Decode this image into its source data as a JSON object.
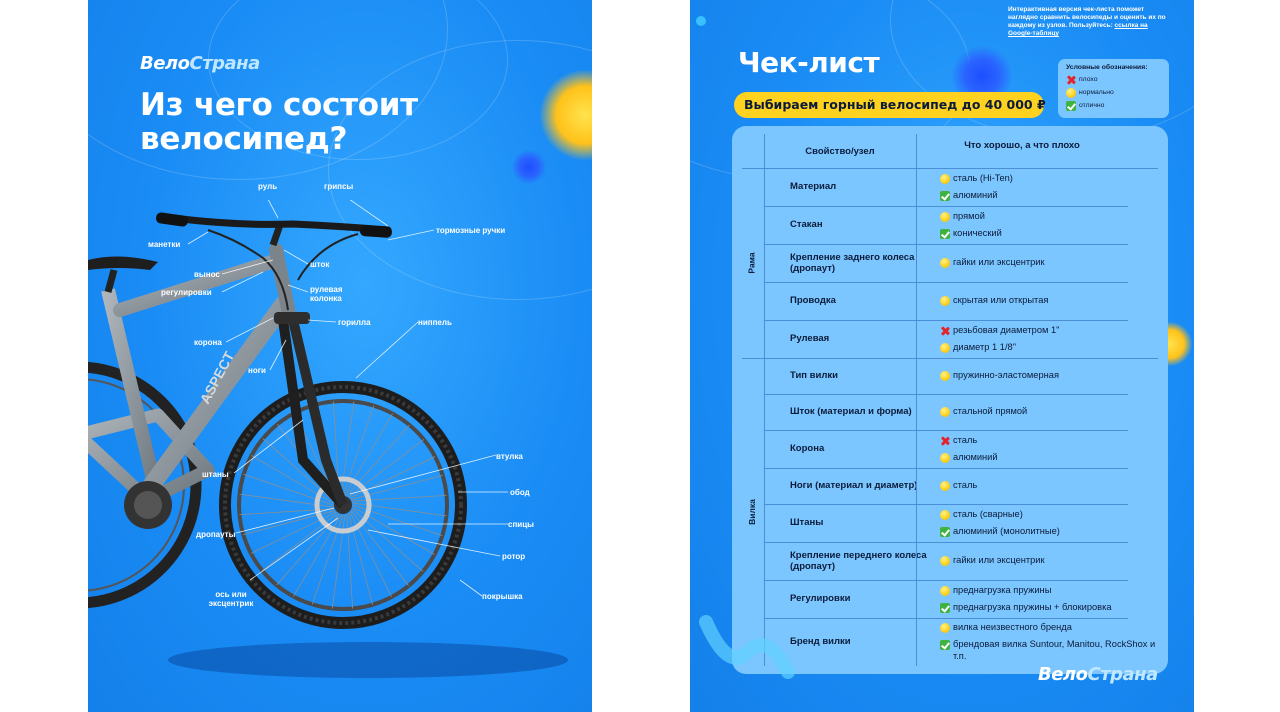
{
  "left_page": {
    "logo": {
      "part1": "Вело",
      "part2": "Страна"
    },
    "title": "Из чего состоит велосипед?",
    "labels": {
      "rul": "руль",
      "gripsy": "грипсы",
      "tormoznye_ruchki": "тормозные ручки",
      "manetki": "манетки",
      "shtok": "шток",
      "vynos": "вынос",
      "regulirovki": "регулировки",
      "rulevaya_kolonka": "рулевая колонка",
      "gorilla": "горилла",
      "nippel": "ниппель",
      "korona": "корона",
      "nogi": "ноги",
      "shtany": "штаны",
      "vtulka": "втулка",
      "obod": "обод",
      "spitsy": "спицы",
      "dropauty": "дропауты",
      "rotor": "ротор",
      "os_ili_ekstsentrik": "ось или эксцентрик",
      "pokryshka": "покрышка"
    },
    "frame_brand": "ASPECT"
  },
  "right_page": {
    "info_text": "Интерактивная версия чек-листа поможет наглядно сравнить велосипеды и оценить их по каждому из узлов. Пользуйтесь:",
    "info_link": "ссылка на Google-таблицу",
    "title": "Чек-лист",
    "subtitle": "Выбираем горный велосипед до 40 000 ₽",
    "legend": {
      "title": "Условные обозначения:",
      "items": [
        {
          "mark": "red",
          "label": "плохо"
        },
        {
          "mark": "yellow",
          "label": "нормально"
        },
        {
          "mark": "green",
          "label": "отлично"
        }
      ]
    },
    "table": {
      "headers": {
        "property": "Свойство/узел",
        "quality": "Что хорошо, а что плохо"
      },
      "groups": [
        {
          "name": "Рама",
          "rows": [
            {
              "property": "Материал",
              "values": [
                {
                  "mark": "yellow",
                  "text": "сталь (Hi-Ten)"
                },
                {
                  "mark": "green",
                  "text": "алюминий"
                }
              ]
            },
            {
              "property": "Стакан",
              "values": [
                {
                  "mark": "yellow",
                  "text": "прямой"
                },
                {
                  "mark": "green",
                  "text": "конический"
                }
              ]
            },
            {
              "property": "Крепление заднего колеса (дропаут)",
              "values": [
                {
                  "mark": "yellow",
                  "text": "гайки или эксцентрик"
                }
              ]
            },
            {
              "property": "Проводка",
              "values": [
                {
                  "mark": "yellow",
                  "text": "скрытая или открытая"
                }
              ]
            },
            {
              "property": "Рулевая",
              "values": [
                {
                  "mark": "red",
                  "text": "резьбовая диаметром 1\""
                },
                {
                  "mark": "yellow",
                  "text": "диаметр 1 1/8\""
                }
              ]
            }
          ]
        },
        {
          "name": "Вилка",
          "rows": [
            {
              "property": "Тип вилки",
              "values": [
                {
                  "mark": "yellow",
                  "text": "пружинно-эластомерная"
                }
              ]
            },
            {
              "property": "Шток (материал и форма)",
              "values": [
                {
                  "mark": "yellow",
                  "text": "стальной прямой"
                }
              ]
            },
            {
              "property": "Корона",
              "values": [
                {
                  "mark": "red",
                  "text": "сталь"
                },
                {
                  "mark": "yellow",
                  "text": "алюминий"
                }
              ]
            },
            {
              "property": "Ноги (материал и диаметр)",
              "values": [
                {
                  "mark": "yellow",
                  "text": "сталь"
                }
              ]
            },
            {
              "property": "Штаны",
              "values": [
                {
                  "mark": "yellow",
                  "text": "сталь (сварные)"
                },
                {
                  "mark": "green",
                  "text": "алюминий (монолитные)"
                }
              ]
            },
            {
              "property": "Крепление переднего колеса (дропаут)",
              "values": [
                {
                  "mark": "yellow",
                  "text": "гайки или эксцентрик"
                }
              ]
            },
            {
              "property": "Регулировки",
              "values": [
                {
                  "mark": "yellow",
                  "text": "преднагрузка пружины"
                },
                {
                  "mark": "green",
                  "text": "преднагрузка пружины + блокировка"
                }
              ]
            },
            {
              "property": "Бренд вилки",
              "values": [
                {
                  "mark": "yellow",
                  "text": "вилка неизвестного бренда"
                },
                {
                  "mark": "green",
                  "text": "брендовая вилка Suntour, Manitou, RockShox и т.п."
                }
              ]
            }
          ]
        }
      ]
    },
    "logo": {
      "part1": "Вело",
      "part2": "Страна"
    }
  },
  "colors": {
    "bg_blue": "#1a8cf5",
    "accent_yellow": "#ffd21f",
    "card_blue": "#7cc6ff",
    "text_dark": "#0b1b3a"
  }
}
